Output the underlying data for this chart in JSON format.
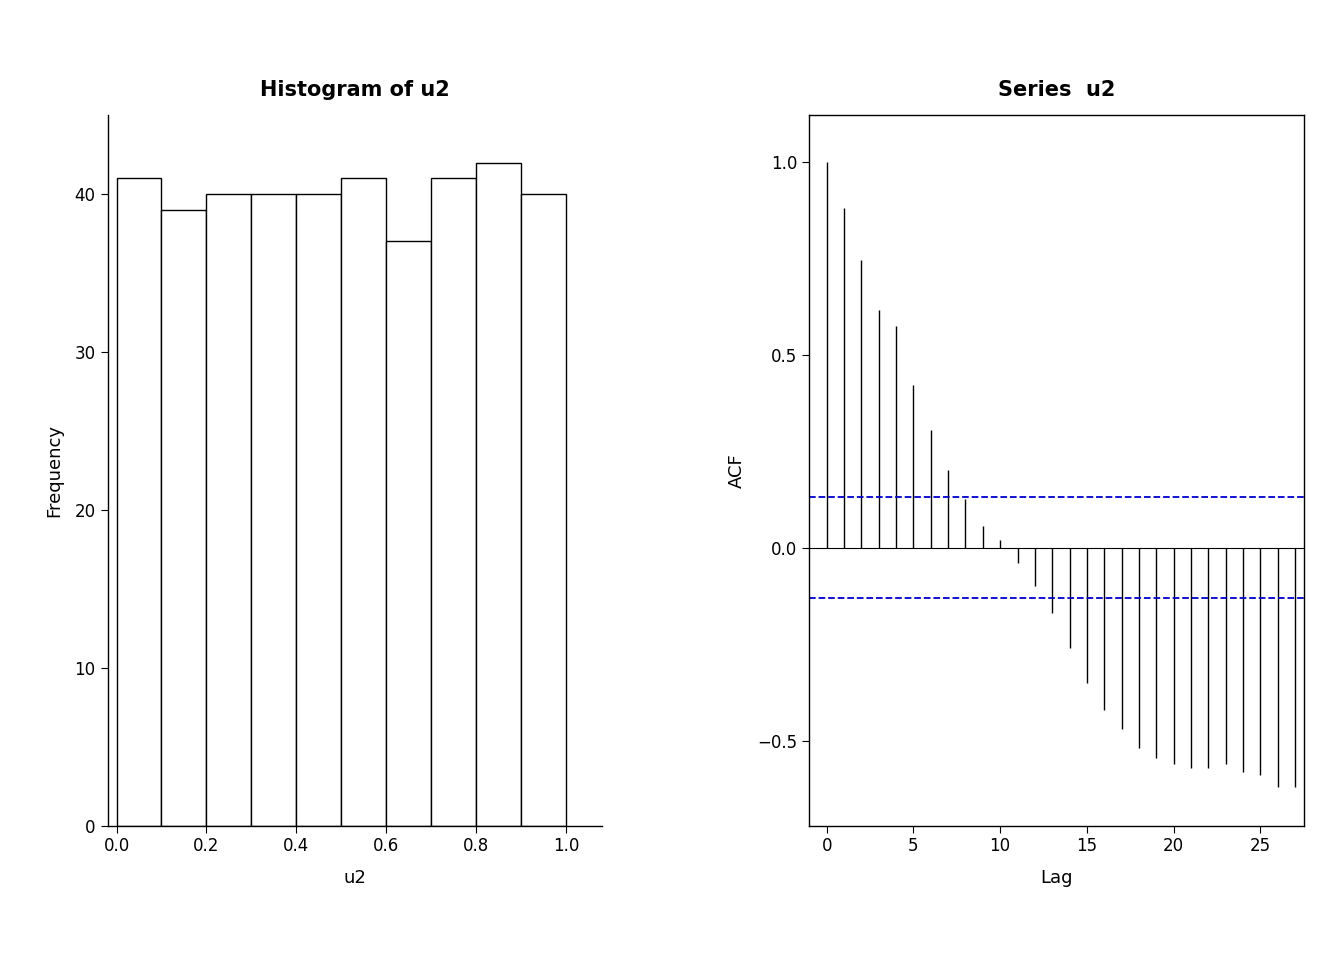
{
  "hist_title": "Histogram of u2",
  "hist_xlabel": "u2",
  "hist_ylabel": "Frequency",
  "hist_bins": 10,
  "hist_xlim": [
    -0.02,
    1.08
  ],
  "hist_ylim": [
    0,
    45
  ],
  "hist_yticks": [
    0,
    10,
    20,
    30,
    40
  ],
  "hist_xticks": [
    0.0,
    0.2,
    0.4,
    0.6,
    0.8,
    1.0
  ],
  "hist_bar_heights": [
    41,
    39,
    40,
    40,
    40,
    41,
    37,
    41,
    42,
    40
  ],
  "acf_title": "Series  u2",
  "acf_xlabel": "Lag",
  "acf_ylabel": "ACF",
  "acf_xlim": [
    -1.0,
    27.5
  ],
  "acf_ylim": [
    -0.72,
    1.12
  ],
  "acf_yticks": [
    -0.5,
    0.0,
    0.5,
    1.0
  ],
  "acf_xticks": [
    0,
    5,
    10,
    15,
    20,
    25
  ],
  "acf_conf_interval": 0.13,
  "acf_values": [
    1.0,
    0.88,
    0.745,
    0.615,
    0.575,
    0.42,
    0.305,
    0.2,
    0.125,
    0.055,
    0.02,
    -0.04,
    -0.1,
    -0.17,
    -0.26,
    -0.35,
    -0.42,
    -0.47,
    -0.52,
    -0.545,
    -0.56,
    -0.57,
    -0.57,
    -0.56,
    -0.58,
    -0.59,
    -0.62,
    -0.62
  ],
  "conf_color": "#0000CC",
  "background_color": "#ffffff",
  "bar_facecolor": "#ffffff",
  "bar_edgecolor": "#000000",
  "title_fontsize": 15,
  "label_fontsize": 13,
  "tick_fontsize": 12
}
